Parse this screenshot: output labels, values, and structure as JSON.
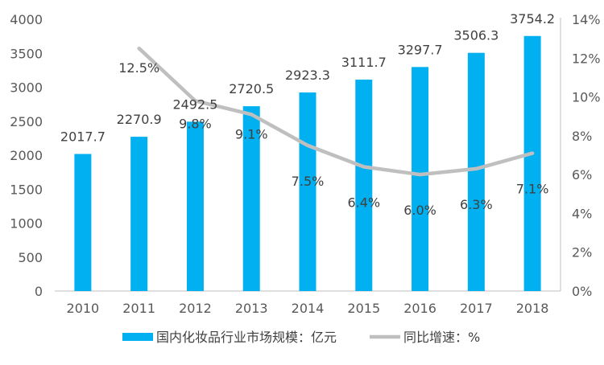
{
  "chart_data": {
    "type": "bar",
    "categories": [
      "2010",
      "2011",
      "2012",
      "2013",
      "2014",
      "2015",
      "2016",
      "2017",
      "2018"
    ],
    "series": [
      {
        "name": "国内化妆品行业市场规模：亿元",
        "type": "bar",
        "axis": "left",
        "color": "#00b0f0",
        "values": [
          2017.7,
          2270.9,
          2492.5,
          2720.5,
          2923.3,
          3111.7,
          3297.7,
          3506.3,
          3754.2
        ],
        "labels": [
          "2017.7",
          "2270.9",
          "2492.5",
          "2720.5",
          "2923.3",
          "3111.7",
          "3297.7",
          "3506.3",
          "3754.2"
        ]
      },
      {
        "name": "同比增速：%",
        "type": "line",
        "axis": "right",
        "color": "#bfbfbf",
        "values": [
          null,
          12.5,
          9.8,
          9.1,
          7.5,
          6.4,
          6.0,
          6.3,
          7.1
        ],
        "labels": [
          "",
          "12.5%",
          "9.8%",
          "9.1%",
          "7.5%",
          "6.4%",
          "6.0%",
          "6.3%",
          "7.1%"
        ]
      }
    ],
    "y_left": {
      "ylim": [
        0,
        4000
      ],
      "ticks": [
        "0",
        "500",
        "1000",
        "1500",
        "2000",
        "2500",
        "3000",
        "3500",
        "4000"
      ]
    },
    "y_right": {
      "ylim": [
        0,
        14
      ],
      "ticks": [
        "0%",
        "2%",
        "4%",
        "6%",
        "8%",
        "10%",
        "12%",
        "14%"
      ]
    },
    "grid": false,
    "legend_position": "bottom"
  }
}
